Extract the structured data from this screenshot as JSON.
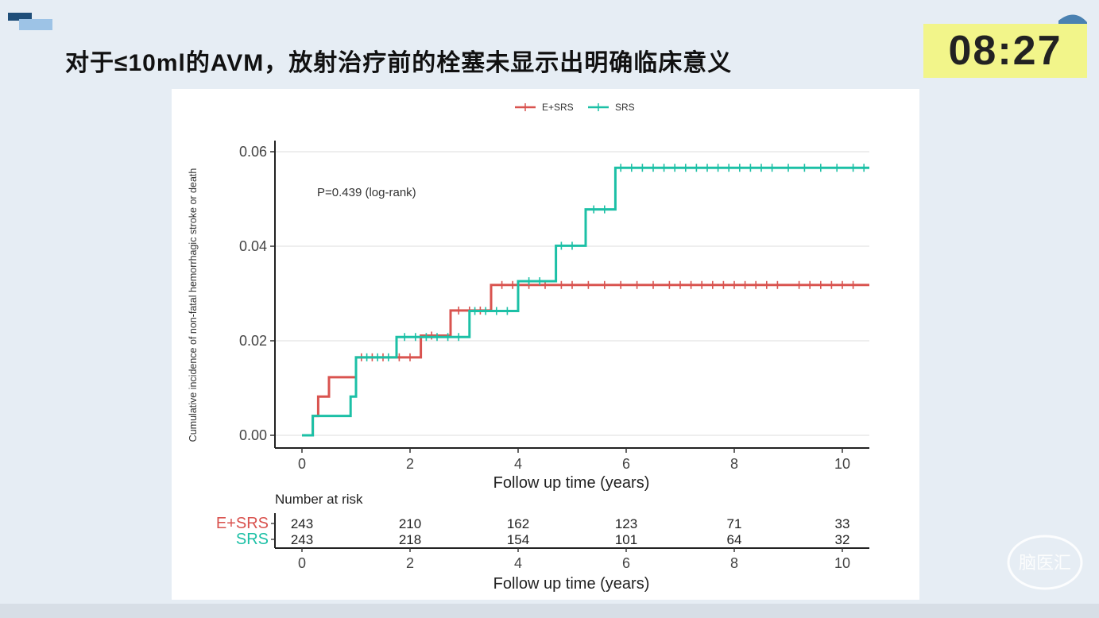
{
  "slide": {
    "title": "对于≤10ml的AVM，放射治疗前的栓塞未显示出明确临床意义",
    "timer": "08:27",
    "watermark_text": "脑医汇"
  },
  "colors": {
    "e_srs": "#d9534f",
    "srs": "#1cc0a6",
    "timer_bg": "#f2f58a"
  },
  "chart_data": {
    "type": "line",
    "subtype": "step (cumulative incidence)",
    "ylabel": "Cumulative incidence of non-fatal hemorrhagic stroke or death",
    "xlabel": "Follow up time (years)",
    "xlim": [
      -0.5,
      10.5
    ],
    "ylim": [
      0,
      0.06
    ],
    "y_ticks": [
      "0.00",
      "0.02",
      "0.04",
      "0.06"
    ],
    "x_ticks": [
      "0",
      "2",
      "4",
      "6",
      "8",
      "10"
    ],
    "grid": "horizontal",
    "legend_position": "top",
    "annotation": "P=0.439 (log-rank)",
    "series": [
      {
        "name": "E+SRS",
        "color": "#d9534f",
        "steps": [
          [
            0,
            0
          ],
          [
            0.2,
            0.0041
          ],
          [
            0.3,
            0.0082
          ],
          [
            0.5,
            0.0123
          ],
          [
            1.0,
            0.0165
          ],
          [
            2.2,
            0.0211
          ],
          [
            2.75,
            0.0264
          ],
          [
            3.5,
            0.0318
          ]
        ],
        "end_x": 10.5,
        "censor_x": [
          1.1,
          1.3,
          1.5,
          1.8,
          2.0,
          2.4,
          2.9,
          3.1,
          3.3,
          3.7,
          3.9,
          4.2,
          4.5,
          4.8,
          5.0,
          5.3,
          5.6,
          5.9,
          6.2,
          6.5,
          6.8,
          7.0,
          7.2,
          7.4,
          7.6,
          7.8,
          8.0,
          8.2,
          8.4,
          8.6,
          8.8,
          9.2,
          9.4,
          9.6,
          9.8,
          10.0,
          10.2
        ]
      },
      {
        "name": "SRS",
        "color": "#1cc0a6",
        "steps": [
          [
            0,
            0
          ],
          [
            0.2,
            0.0041
          ],
          [
            0.9,
            0.0082
          ],
          [
            1.0,
            0.0165
          ],
          [
            1.75,
            0.0208
          ],
          [
            3.1,
            0.0263
          ],
          [
            4.0,
            0.0326
          ],
          [
            4.7,
            0.0401
          ],
          [
            5.25,
            0.0478
          ],
          [
            5.8,
            0.0566
          ]
        ],
        "end_x": 10.5,
        "censor_x": [
          1.2,
          1.4,
          1.6,
          1.9,
          2.1,
          2.3,
          2.5,
          2.7,
          2.9,
          3.2,
          3.4,
          3.6,
          3.8,
          4.2,
          4.4,
          4.8,
          5.0,
          5.4,
          5.6,
          5.9,
          6.1,
          6.3,
          6.5,
          6.7,
          6.9,
          7.1,
          7.3,
          7.5,
          7.7,
          7.9,
          8.1,
          8.3,
          8.5,
          8.7,
          9.0,
          9.3,
          9.6,
          9.9,
          10.2,
          10.4
        ]
      }
    ],
    "risk_table": {
      "title": "Number at risk",
      "xlabel": "Follow up time (years)",
      "x_ticks": [
        "0",
        "2",
        "4",
        "6",
        "8",
        "10"
      ],
      "rows": [
        {
          "name": "E+SRS",
          "values": [
            "243",
            "210",
            "162",
            "123",
            "71",
            "33"
          ]
        },
        {
          "name": "SRS",
          "values": [
            "243",
            "218",
            "154",
            "101",
            "64",
            "32"
          ]
        }
      ]
    }
  }
}
